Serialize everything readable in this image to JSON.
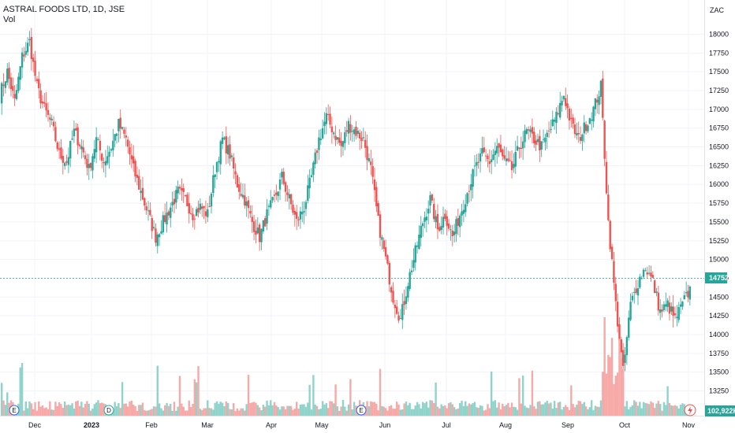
{
  "header": {
    "symbol": "ASTRAL FOODS LTD, 1D, JSE",
    "indicator": "Vol"
  },
  "currency": "ZAC",
  "last_price_label": "14752",
  "volume_label": "102,922K",
  "colors": {
    "up": "#26a69a",
    "down": "#ef5350",
    "up_vol": "#8fd3cb",
    "down_vol": "#f6a9a7",
    "grid": "#f0f3fa",
    "axis_text": "#131722"
  },
  "event_markers": [
    {
      "label": "E",
      "month": "Dec"
    },
    {
      "label": "D",
      "month": "2023"
    },
    {
      "label": "E",
      "month": "Jun"
    }
  ],
  "chart_data": {
    "type": "candlestick",
    "title": "ASTRAL FOODS LTD, 1D, JSE",
    "ylabel": "ZAC",
    "ylim": [
      13000,
      18250
    ],
    "y_ticks": [
      13250,
      13500,
      13750,
      14000,
      14250,
      14500,
      14750,
      15000,
      15250,
      15500,
      15750,
      16000,
      16250,
      16500,
      16750,
      17000,
      17250,
      17500,
      17750,
      18000
    ],
    "x_ticks": [
      "Dec",
      "2023",
      "Feb",
      "Mar",
      "Apr",
      "May",
      "Jun",
      "Jul",
      "Aug",
      "Sep",
      "Oct",
      "Nov"
    ],
    "last_price": 14752,
    "last_volume": "102,922K",
    "grid": true,
    "series": [
      {
        "name": "Price",
        "waypoints": [
          [
            0,
            17200
          ],
          [
            4,
            17500
          ],
          [
            8,
            17100
          ],
          [
            12,
            17700
          ],
          [
            16,
            17900
          ],
          [
            20,
            17300
          ],
          [
            24,
            17000
          ],
          [
            28,
            16800
          ],
          [
            32,
            16400
          ],
          [
            36,
            16300
          ],
          [
            40,
            16700
          ],
          [
            44,
            16500
          ],
          [
            48,
            16200
          ],
          [
            52,
            16600
          ],
          [
            56,
            16300
          ],
          [
            60,
            16500
          ],
          [
            64,
            16800
          ],
          [
            68,
            16600
          ],
          [
            72,
            16200
          ],
          [
            76,
            15900
          ],
          [
            80,
            15600
          ],
          [
            84,
            15300
          ],
          [
            88,
            15500
          ],
          [
            92,
            15700
          ],
          [
            96,
            15900
          ],
          [
            100,
            15800
          ],
          [
            104,
            15600
          ],
          [
            108,
            15700
          ],
          [
            112,
            15600
          ],
          [
            116,
            16200
          ],
          [
            120,
            16600
          ],
          [
            124,
            16400
          ],
          [
            128,
            16000
          ],
          [
            132,
            15800
          ],
          [
            136,
            15500
          ],
          [
            140,
            15300
          ],
          [
            144,
            15600
          ],
          [
            148,
            15800
          ],
          [
            152,
            16100
          ],
          [
            156,
            15800
          ],
          [
            160,
            15500
          ],
          [
            164,
            15700
          ],
          [
            168,
            16100
          ],
          [
            172,
            16600
          ],
          [
            176,
            16900
          ],
          [
            180,
            16700
          ],
          [
            184,
            16500
          ],
          [
            188,
            16800
          ],
          [
            192,
            16700
          ],
          [
            196,
            16600
          ],
          [
            200,
            16200
          ],
          [
            204,
            15500
          ],
          [
            208,
            15000
          ],
          [
            212,
            14500
          ],
          [
            216,
            14200
          ],
          [
            220,
            14700
          ],
          [
            224,
            15100
          ],
          [
            228,
            15500
          ],
          [
            232,
            15800
          ],
          [
            236,
            15400
          ],
          [
            240,
            15600
          ],
          [
            244,
            15300
          ],
          [
            248,
            15600
          ],
          [
            252,
            15900
          ],
          [
            256,
            16200
          ],
          [
            260,
            16400
          ],
          [
            264,
            16300
          ],
          [
            268,
            16500
          ],
          [
            272,
            16300
          ],
          [
            276,
            16200
          ],
          [
            280,
            16500
          ],
          [
            284,
            16700
          ],
          [
            288,
            16600
          ],
          [
            292,
            16500
          ],
          [
            296,
            16700
          ],
          [
            300,
            16900
          ],
          [
            304,
            17200
          ],
          [
            308,
            16800
          ],
          [
            312,
            16600
          ],
          [
            316,
            16800
          ],
          [
            320,
            17000
          ],
          [
            324,
            17300
          ],
          [
            328,
            15500
          ],
          [
            332,
            14400
          ],
          [
            336,
            13500
          ],
          [
            340,
            14400
          ],
          [
            344,
            14700
          ],
          [
            348,
            14900
          ],
          [
            352,
            14700
          ],
          [
            356,
            14300
          ],
          [
            360,
            14400
          ],
          [
            364,
            14200
          ],
          [
            368,
            14400
          ],
          [
            372,
            14600
          ]
        ]
      },
      {
        "name": "Vol"
      }
    ]
  }
}
